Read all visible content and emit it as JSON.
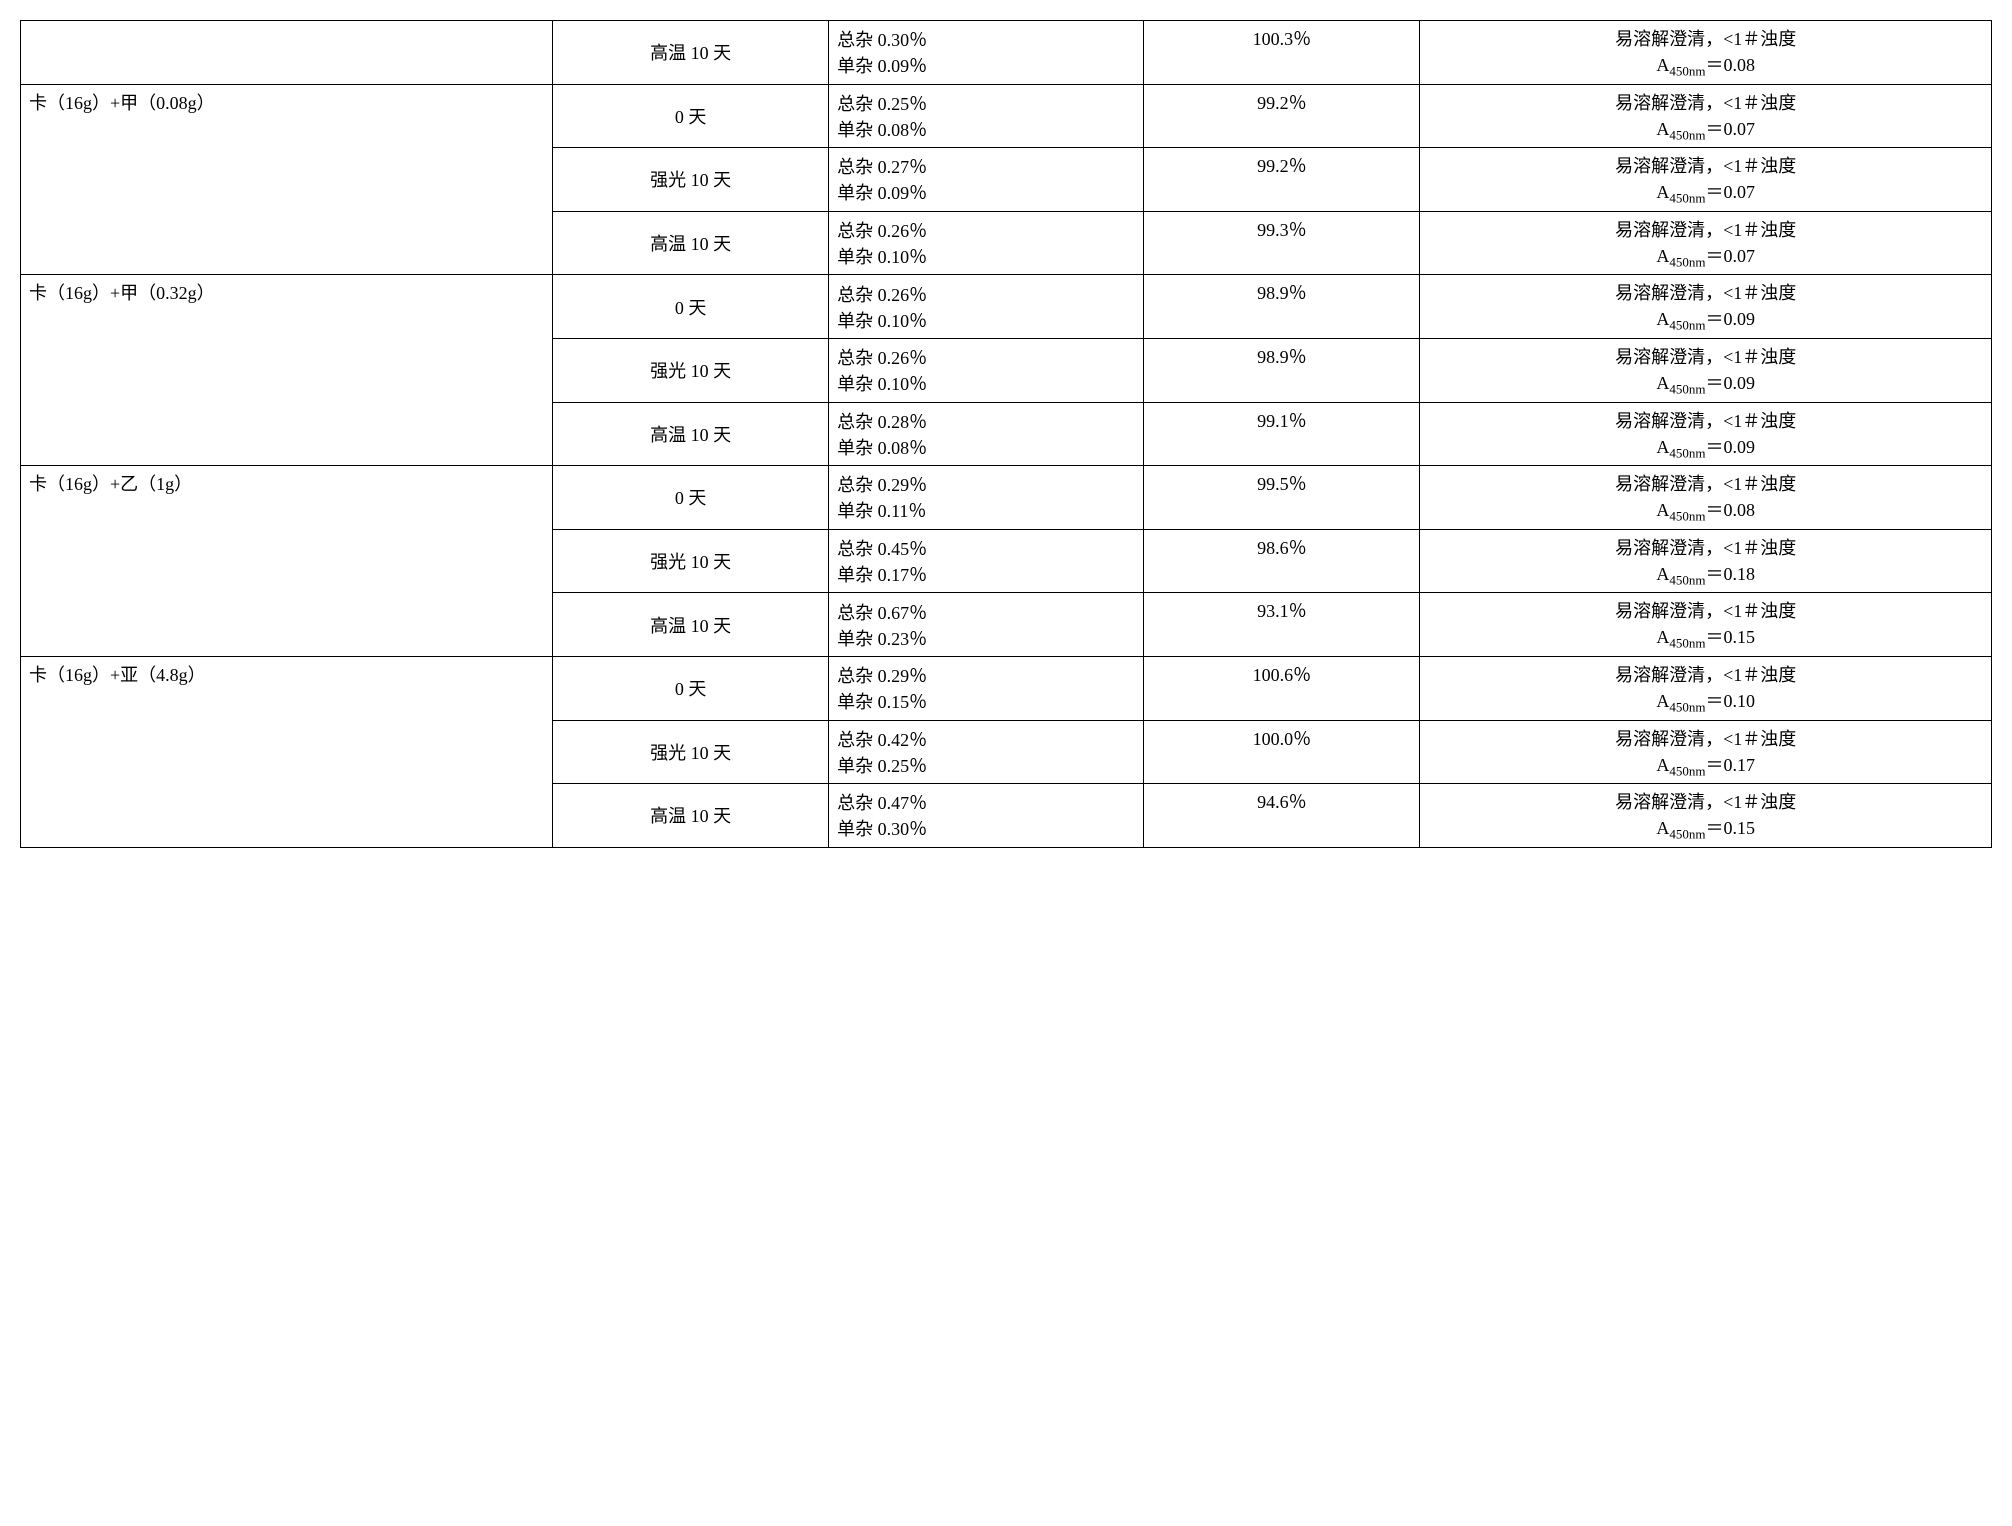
{
  "table": {
    "font_family": "SimSun",
    "font_size": 18,
    "border_color": "#000000",
    "background_color": "#ffffff",
    "rows": [
      {
        "sample": "",
        "sample_rowspan": 1,
        "condition": "高温 10 天",
        "impurity_total": "总杂 0.30％",
        "impurity_single": "单杂 0.09％",
        "percent": "100.3％",
        "result_line1": "易溶解澄清，<1＃浊度",
        "result_a": "A",
        "result_sub": "450nm",
        "result_val": "＝0.08"
      },
      {
        "sample": "卡（16g）+甲（0.08g）",
        "sample_rowspan": 3,
        "condition": "0 天",
        "impurity_total": "总杂 0.25％",
        "impurity_single": "单杂 0.08％",
        "percent": "99.2％",
        "result_line1": "易溶解澄清，<1＃浊度",
        "result_a": "A",
        "result_sub": "450nm",
        "result_val": "＝0.07"
      },
      {
        "sample": null,
        "condition": "强光 10 天",
        "impurity_total": "总杂 0.27％",
        "impurity_single": "单杂 0.09％",
        "percent": "99.2％",
        "result_line1": "易溶解澄清，<1＃浊度",
        "result_a": "A",
        "result_sub": "450nm",
        "result_val": "＝0.07"
      },
      {
        "sample": null,
        "condition": "高温 10 天",
        "impurity_total": "总杂 0.26％",
        "impurity_single": "单杂 0.10％",
        "percent": "99.3％",
        "result_line1": "易溶解澄清，<1＃浊度",
        "result_a": "A",
        "result_sub": "450nm",
        "result_val": "＝0.07"
      },
      {
        "sample": "卡（16g）+甲（0.32g）",
        "sample_rowspan": 3,
        "condition": "0 天",
        "impurity_total": "总杂 0.26％",
        "impurity_single": "单杂 0.10％",
        "percent": "98.9％",
        "result_line1": "易溶解澄清，<1＃浊度",
        "result_a": "A",
        "result_sub": "450nm",
        "result_val": "＝0.09"
      },
      {
        "sample": null,
        "condition": "强光 10 天",
        "impurity_total": "总杂 0.26％",
        "impurity_single": "单杂 0.10％",
        "percent": "98.9％",
        "result_line1": "易溶解澄清，<1＃浊度",
        "result_a": "A",
        "result_sub": "450nm",
        "result_val": "＝0.09"
      },
      {
        "sample": null,
        "condition": "高温 10 天",
        "impurity_total": "总杂 0.28％",
        "impurity_single": "单杂 0.08％",
        "percent": "99.1％",
        "result_line1": "易溶解澄清，<1＃浊度",
        "result_a": "A",
        "result_sub": "450nm",
        "result_val": "＝0.09"
      },
      {
        "sample": "卡（16g）+乙（1g）",
        "sample_rowspan": 3,
        "condition": "0 天",
        "impurity_total": "总杂 0.29％",
        "impurity_single": "单杂 0.11％",
        "percent": "99.5％",
        "result_line1": "易溶解澄清，<1＃浊度",
        "result_a": "A",
        "result_sub": "450nm",
        "result_val": "＝0.08"
      },
      {
        "sample": null,
        "condition": "强光 10 天",
        "impurity_total": "总杂 0.45％",
        "impurity_single": "单杂 0.17％",
        "percent": "98.6％",
        "result_line1": "易溶解澄清，<1＃浊度",
        "result_a": "A",
        "result_sub": "450nm",
        "result_val": "＝0.18"
      },
      {
        "sample": null,
        "condition": "高温 10 天",
        "impurity_total": "总杂 0.67％",
        "impurity_single": "单杂 0.23％",
        "percent": "93.1％",
        "result_line1": "易溶解澄清，<1＃浊度",
        "result_a": "A",
        "result_sub": "450nm",
        "result_val": "＝0.15"
      },
      {
        "sample": "卡（16g）+亚（4.8g）",
        "sample_rowspan": 3,
        "condition": "0 天",
        "impurity_total": "总杂 0.29％",
        "impurity_single": "单杂 0.15％",
        "percent": "100.6％",
        "result_line1": "易溶解澄清，<1＃浊度",
        "result_a": "A",
        "result_sub": "450nm",
        "result_val": "＝0.10"
      },
      {
        "sample": null,
        "condition": "强光 10 天",
        "impurity_total": "总杂 0.42％",
        "impurity_single": "单杂 0.25％",
        "percent": "100.0％",
        "result_line1": "易溶解澄清，<1＃浊度",
        "result_a": "A",
        "result_sub": "450nm",
        "result_val": "＝0.17"
      },
      {
        "sample": null,
        "condition": "高温 10 天",
        "impurity_total": "总杂 0.47％",
        "impurity_single": "单杂 0.30％",
        "percent": "94.6％",
        "result_line1": "易溶解澄清，<1＃浊度",
        "result_a": "A",
        "result_sub": "450nm",
        "result_val": "＝0.15"
      }
    ]
  }
}
